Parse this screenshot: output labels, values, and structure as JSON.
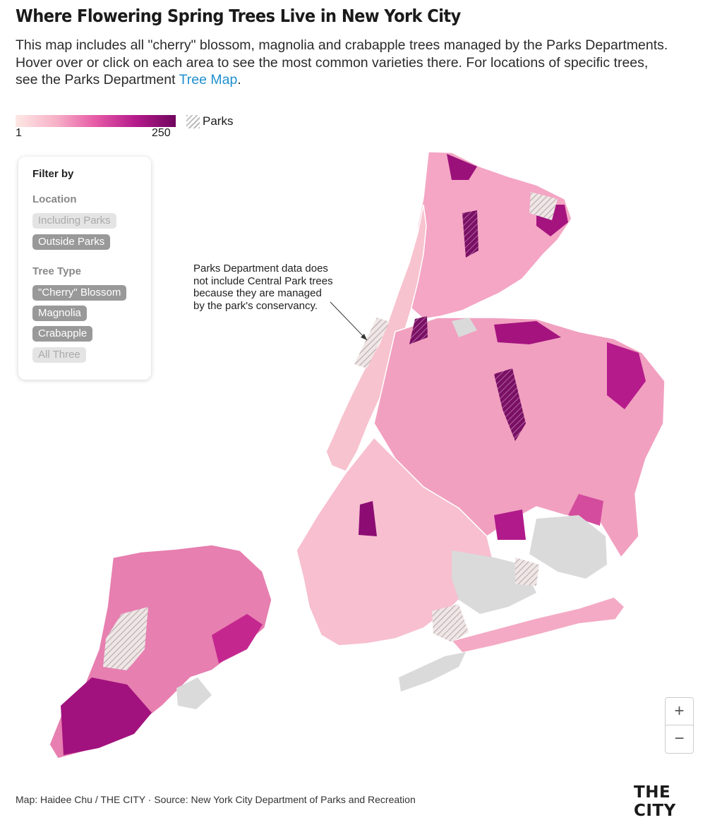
{
  "title": "Where Flowering Spring Trees Live in New York City",
  "intro": {
    "text": "This map includes all \"cherry\" blossom, magnolia and crabapple trees managed by the Parks Departments. Hover over or click on each area to see the most common varieties there. For locations of specific trees, see the Parks Department ",
    "link_text": "Tree Map",
    "end": "."
  },
  "legend": {
    "min": "1",
    "max": "250",
    "parks_label": "Parks",
    "colors": [
      "#fde8e4",
      "#f7b2c8",
      "#e65aa6",
      "#b51b8b",
      "#70065e"
    ],
    "park_pattern_color": "#bbbbbb"
  },
  "filter": {
    "title": "Filter by",
    "location_label": "Location",
    "location_options": [
      {
        "label": "Including Parks",
        "active": false
      },
      {
        "label": "Outside Parks",
        "active": true
      }
    ],
    "tree_type_label": "Tree Type",
    "tree_type_options": [
      {
        "label": "\"Cherry\" Blossom",
        "active": true
      },
      {
        "label": "Magnolia",
        "active": true
      },
      {
        "label": "Crabapple",
        "active": true
      },
      {
        "label": "All Three",
        "active": false
      }
    ]
  },
  "annotation": "Parks Department data does not include Central Park trees because they are managed by the park's conservancy.",
  "zoom": {
    "in_label": "+",
    "out_label": "−"
  },
  "credit": "Map: Haidee Chu / THE CITY · Source: New York City Department of Parks and Recreation",
  "brand": "THE CITY",
  "map_colors": {
    "nodata": "#dadada",
    "water": "#ffffff"
  }
}
